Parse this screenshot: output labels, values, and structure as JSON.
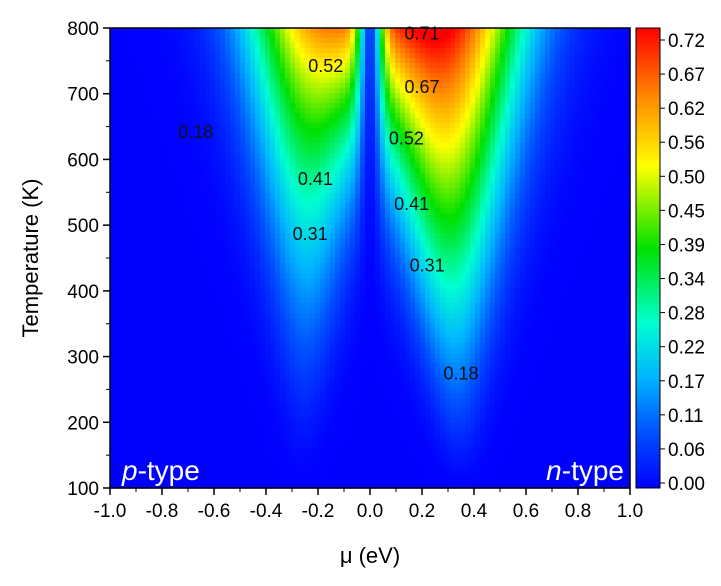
{
  "chart_data": {
    "type": "heatmap",
    "xlabel": "μ (eV)",
    "ylabel": "Temperature (K)",
    "xlim": [
      -1.0,
      1.0
    ],
    "ylim": [
      100,
      800
    ],
    "x_ticks": [
      "-1.0",
      "-0.8",
      "-0.6",
      "-0.4",
      "-0.2",
      "0.0",
      "0.2",
      "0.4",
      "0.6",
      "0.8",
      "1.0"
    ],
    "y_ticks": [
      "100",
      "200",
      "300",
      "400",
      "500",
      "600",
      "700",
      "800"
    ],
    "colorbar": {
      "ticks": [
        "0.00",
        "0.06",
        "0.11",
        "0.17",
        "0.22",
        "0.28",
        "0.34",
        "0.39",
        "0.45",
        "0.50",
        "0.56",
        "0.62",
        "0.67",
        "0.72"
      ],
      "range": [
        0.0,
        0.72
      ],
      "colors": [
        "#0000ff",
        "#0050ff",
        "#00b4ff",
        "#00ffd0",
        "#00e000",
        "#ffff00",
        "#ff8000",
        "#ff0000"
      ]
    },
    "region_labels": {
      "left_italic": "p",
      "left_rest": "-type",
      "right_italic": "n",
      "right_rest": "-type"
    },
    "contour_labels": [
      {
        "text": "0.71",
        "mu": 0.2,
        "T": 790
      },
      {
        "text": "0.52",
        "mu": -0.17,
        "T": 740
      },
      {
        "text": "0.67",
        "mu": 0.2,
        "T": 708
      },
      {
        "text": "0.18",
        "mu": -0.67,
        "T": 640
      },
      {
        "text": "0.52",
        "mu": 0.14,
        "T": 630
      },
      {
        "text": "0.41",
        "mu": -0.21,
        "T": 568
      },
      {
        "text": "0.41",
        "mu": 0.16,
        "T": 530
      },
      {
        "text": "0.31",
        "mu": -0.23,
        "T": 485
      },
      {
        "text": "0.31",
        "mu": 0.22,
        "T": 437
      },
      {
        "text": "0.18",
        "mu": 0.35,
        "T": 272
      }
    ],
    "field_model": {
      "p_lobe": {
        "center_mu": -0.22,
        "peak": 0.53
      },
      "n_lobe": {
        "center_mu": 0.27,
        "peak": 0.73
      },
      "gap_center_mu": 0.0
    }
  }
}
